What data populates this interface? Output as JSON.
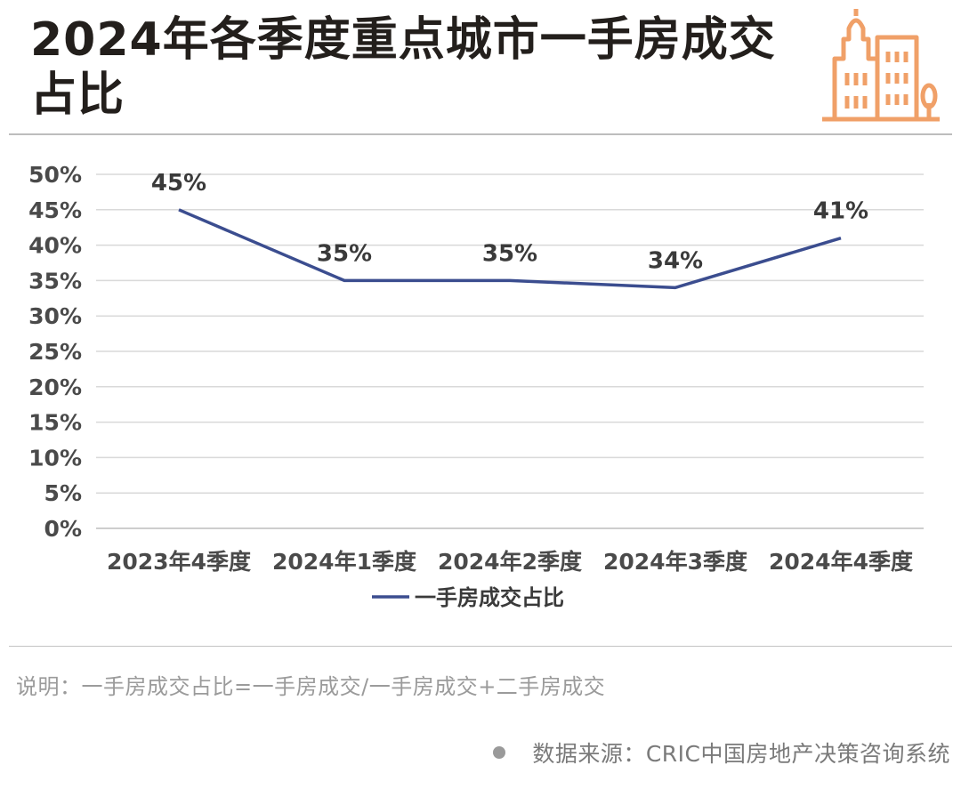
{
  "header": {
    "title": "2024年各季度重点城市一手房成交占比",
    "logo_icon": "city-buildings-icon",
    "accent_color": "#f0a068"
  },
  "chart_data": {
    "type": "line",
    "categories": [
      "2023年4季度",
      "2024年1季度",
      "2024年2季度",
      "2024年3季度",
      "2024年4季度"
    ],
    "series": [
      {
        "name": "一手房成交占比",
        "values": [
          45,
          35,
          35,
          34,
          41
        ],
        "color": "#3b4d8f"
      }
    ],
    "data_labels": [
      "45%",
      "35%",
      "35%",
      "34%",
      "41%"
    ],
    "y_ticks": [
      "0%",
      "5%",
      "10%",
      "15%",
      "20%",
      "25%",
      "30%",
      "35%",
      "40%",
      "45%",
      "50%"
    ],
    "ylim": [
      0,
      50
    ],
    "y_step": 5,
    "grid": true,
    "legend_position": "bottom"
  },
  "footer": {
    "note": "说明：一手房成交占比=一手房成交/一手房成交+二手房成交",
    "source": "数据来源：CRIC中国房地产决策咨询系统"
  }
}
